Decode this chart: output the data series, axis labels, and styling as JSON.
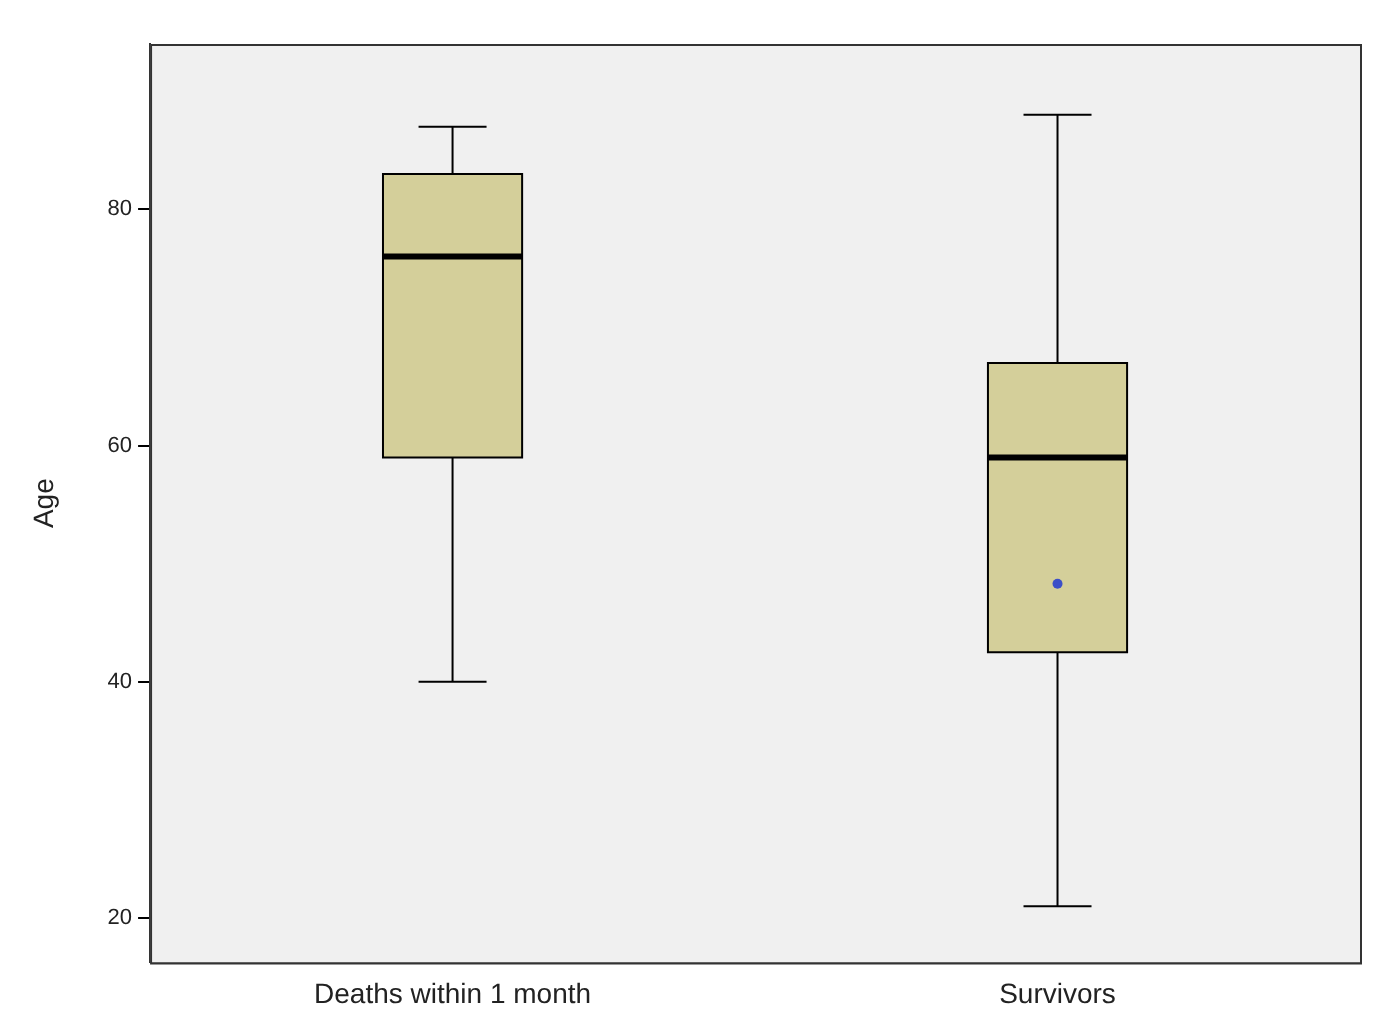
{
  "chart_data": {
    "type": "box",
    "categories": [
      "Deaths within 1 month",
      "Survivors"
    ],
    "ylabel": "Age",
    "color": "#d4cf9a",
    "boxes": [
      {
        "low": 40,
        "q1": 59,
        "median": 76,
        "q3": 83,
        "high": 87
      },
      {
        "low": 21,
        "q1": 42.5,
        "median": 59,
        "q3": 67,
        "high": 88,
        "mean": 48.3
      }
    ],
    "ylim": [
      16.25,
      94
    ],
    "yticks": [
      20,
      40,
      60,
      80
    ],
    "grid": false,
    "legend": false
  }
}
